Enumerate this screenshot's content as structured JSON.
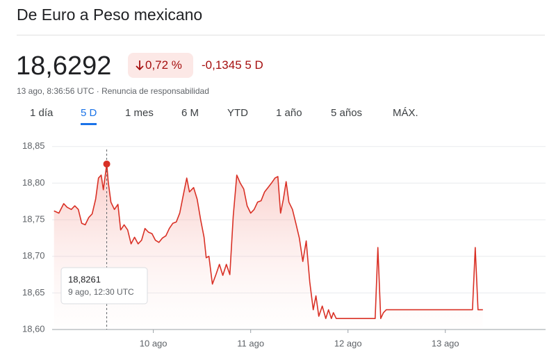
{
  "header": {
    "title": "De Euro a Peso mexicano",
    "price": "18,6292",
    "change_percent": "0,72 %",
    "change_abs": "-0,1345 5 D",
    "timestamp": "13 ago, 8:36:56 UTC",
    "separator": "·",
    "disclaimer": "Renuncia de responsabilidad"
  },
  "tabs": [
    "1 día",
    "5 D",
    "1 mes",
    "6 M",
    "YTD",
    "1 año",
    "5 años",
    "MÁX."
  ],
  "selected_tab": "5 D",
  "chart_data": {
    "type": "line",
    "color": "#d93025",
    "area": true,
    "x": [
      8.979,
      9.029,
      9.079,
      9.114,
      9.157,
      9.193,
      9.229,
      9.264,
      9.3,
      9.336,
      9.371,
      9.407,
      9.436,
      9.464,
      9.486,
      9.521,
      9.536,
      9.564,
      9.6,
      9.636,
      9.664,
      9.7,
      9.736,
      9.771,
      9.807,
      9.843,
      9.879,
      9.914,
      9.95,
      9.986,
      10.021,
      10.057,
      10.093,
      10.129,
      10.164,
      10.2,
      10.236,
      10.271,
      10.307,
      10.343,
      10.371,
      10.414,
      10.45,
      10.486,
      10.521,
      10.543,
      10.571,
      10.607,
      10.643,
      10.679,
      10.714,
      10.75,
      10.786,
      10.821,
      10.857,
      10.893,
      10.929,
      10.964,
      11.0,
      11.036,
      11.071,
      11.107,
      11.143,
      11.179,
      11.214,
      11.25,
      11.279,
      11.307,
      11.336,
      11.364,
      11.393,
      11.429,
      11.464,
      11.5,
      11.536,
      11.571,
      11.607,
      11.643,
      11.671,
      11.7,
      11.736,
      11.771,
      11.8,
      11.829,
      11.85,
      11.879,
      12.279,
      12.307,
      12.336,
      12.364,
      12.393,
      13.279,
      13.307,
      13.336,
      13.386
    ],
    "values": [
      18.762,
      18.759,
      18.772,
      18.767,
      18.764,
      18.769,
      18.764,
      18.745,
      18.743,
      18.753,
      18.758,
      18.778,
      18.807,
      18.811,
      18.791,
      18.8261,
      18.802,
      18.774,
      18.764,
      18.771,
      18.736,
      18.743,
      18.736,
      18.717,
      18.726,
      18.717,
      18.722,
      18.738,
      18.733,
      18.731,
      18.722,
      18.719,
      18.725,
      18.728,
      18.738,
      18.745,
      18.747,
      18.759,
      18.783,
      18.807,
      18.788,
      18.794,
      18.778,
      18.75,
      18.726,
      18.698,
      18.7,
      18.662,
      18.675,
      18.689,
      18.674,
      18.689,
      18.675,
      18.755,
      18.811,
      18.8,
      18.792,
      18.769,
      18.759,
      18.764,
      18.774,
      18.776,
      18.788,
      18.794,
      18.8,
      18.807,
      18.809,
      18.759,
      18.778,
      18.802,
      18.774,
      18.764,
      18.745,
      18.725,
      18.693,
      18.721,
      18.665,
      18.627,
      18.646,
      18.618,
      18.632,
      18.615,
      18.627,
      18.615,
      18.623,
      18.615,
      18.615,
      18.712,
      18.615,
      18.623,
      18.627,
      18.627,
      18.712,
      18.627,
      18.627
    ],
    "xlim": [
      8.96,
      14.03
    ],
    "xticks": [
      {
        "value": 10,
        "label": "10 ago"
      },
      {
        "value": 11,
        "label": "11 ago"
      },
      {
        "value": 12,
        "label": "12 ago"
      },
      {
        "value": 13,
        "label": "13 ago"
      }
    ],
    "ylim": [
      18.6,
      18.865
    ],
    "yticks": [
      {
        "value": 18.6,
        "label": "18,60"
      },
      {
        "value": 18.65,
        "label": "18,65"
      },
      {
        "value": 18.7,
        "label": "18,70"
      },
      {
        "value": 18.75,
        "label": "18,75"
      },
      {
        "value": 18.8,
        "label": "18,80"
      },
      {
        "value": 18.85,
        "label": "18,85"
      }
    ],
    "grid": true,
    "tooltip": {
      "x": 9.521,
      "value": 18.8261,
      "value_label": "18,8261",
      "time": "9 ago, 12:30 UTC"
    }
  }
}
